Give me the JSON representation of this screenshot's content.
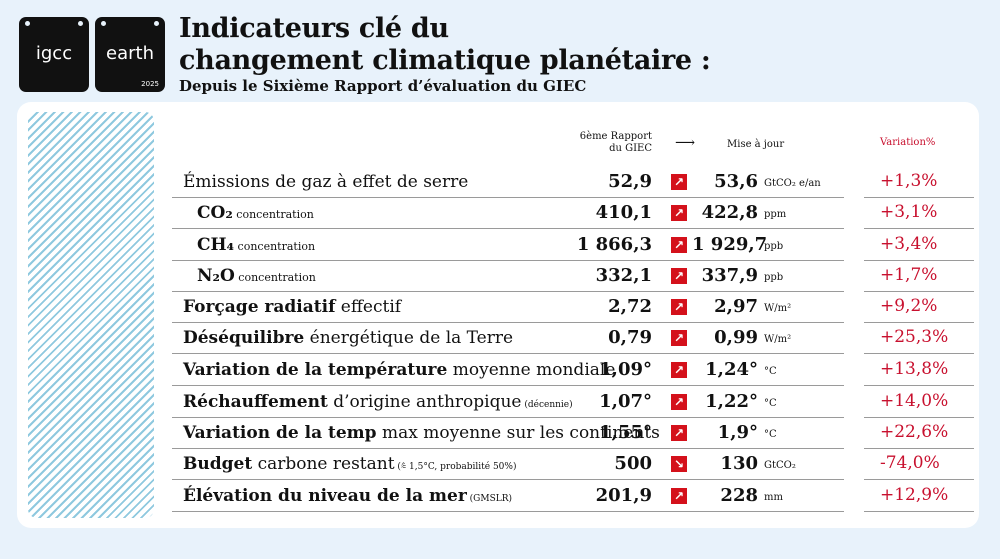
{
  "logos": {
    "igcc": "igcc",
    "earth": "earth",
    "year": "2025"
  },
  "title_line1": "Indicateurs clé du",
  "title_line2": "changement climatique planétaire :",
  "subtitle": "Depuis le Sixième Rapport d’évaluation du GIEC",
  "headers": {
    "old_line1": "6ème Rapport",
    "old_line2": "du GIEC",
    "arrow": "⟶",
    "new": "Mise à jour",
    "variation": "Variation%"
  },
  "colors": {
    "accent": "#c8102e",
    "icon_bg": "#d4111b",
    "stripes": "#8fc9df",
    "background": "#e8f2fb"
  },
  "rows": [
    {
      "bold": "",
      "normal": "Émissions de gaz à effet de serre",
      "small": "",
      "old": "52,9",
      "trend": "up",
      "new": "53,6",
      "unit": "GtCO₂ e/an",
      "variation": "+1,3%"
    },
    {
      "bold": "CO₂",
      "normal": "",
      "small": " concentration",
      "old": "410,1",
      "trend": "up",
      "new": "422,8",
      "unit": "ppm",
      "variation": "+3,1%"
    },
    {
      "bold": "CH₄",
      "normal": "",
      "small": " concentration",
      "old": "1 866,3",
      "trend": "up",
      "new": "1 929,7",
      "unit": "ppb",
      "variation": "+3,4%"
    },
    {
      "bold": "N₂O",
      "normal": "",
      "small": " concentration",
      "old": "332,1",
      "trend": "up",
      "new": "337,9",
      "unit": "ppb",
      "variation": "+1,7%"
    },
    {
      "bold": "Forçage radiatif",
      "normal": " effectif",
      "small": "",
      "old": "2,72",
      "trend": "up",
      "new": "2,97",
      "unit": "W/m²",
      "variation": "+9,2%"
    },
    {
      "bold": "Déséquilibre",
      "normal": " énergétique de la Terre",
      "small": "",
      "old": "0,79",
      "trend": "up",
      "new": "0,99",
      "unit": "W/m²",
      "variation": "+25,3%"
    },
    {
      "bold": "Variation de la température",
      "normal": " moyenne mondiale",
      "small": "",
      "old": "1,09°",
      "trend": "up",
      "new": "1,24°",
      "unit": "°C",
      "variation": "+13,8%"
    },
    {
      "bold": "Réchauffement",
      "normal": " d’origine anthropique",
      "small": " (décennie)",
      "old": "1,07°",
      "trend": "up",
      "new": "1,22°",
      "unit": "°C",
      "variation": "+14,0%"
    },
    {
      "bold": "Variation de la temp",
      "normal": " max moyenne sur les continents",
      "small": "",
      "old": "1,55°",
      "trend": "up",
      "new": "1,9°",
      "unit": "°C",
      "variation": "+22,6%"
    },
    {
      "bold": "Budget",
      "normal": " carbone restant",
      "small": " (⩯ 1,5°C, probabilité 50%)",
      "old": "500",
      "trend": "down",
      "new": "130",
      "unit": "GtCO₂",
      "variation": "-74,0%"
    },
    {
      "bold": "Élévation du niveau de la mer",
      "normal": "",
      "small": " (GMSLR)",
      "old": "201,9",
      "trend": "up",
      "new": "228",
      "unit": "mm",
      "variation": "+12,9%"
    }
  ]
}
